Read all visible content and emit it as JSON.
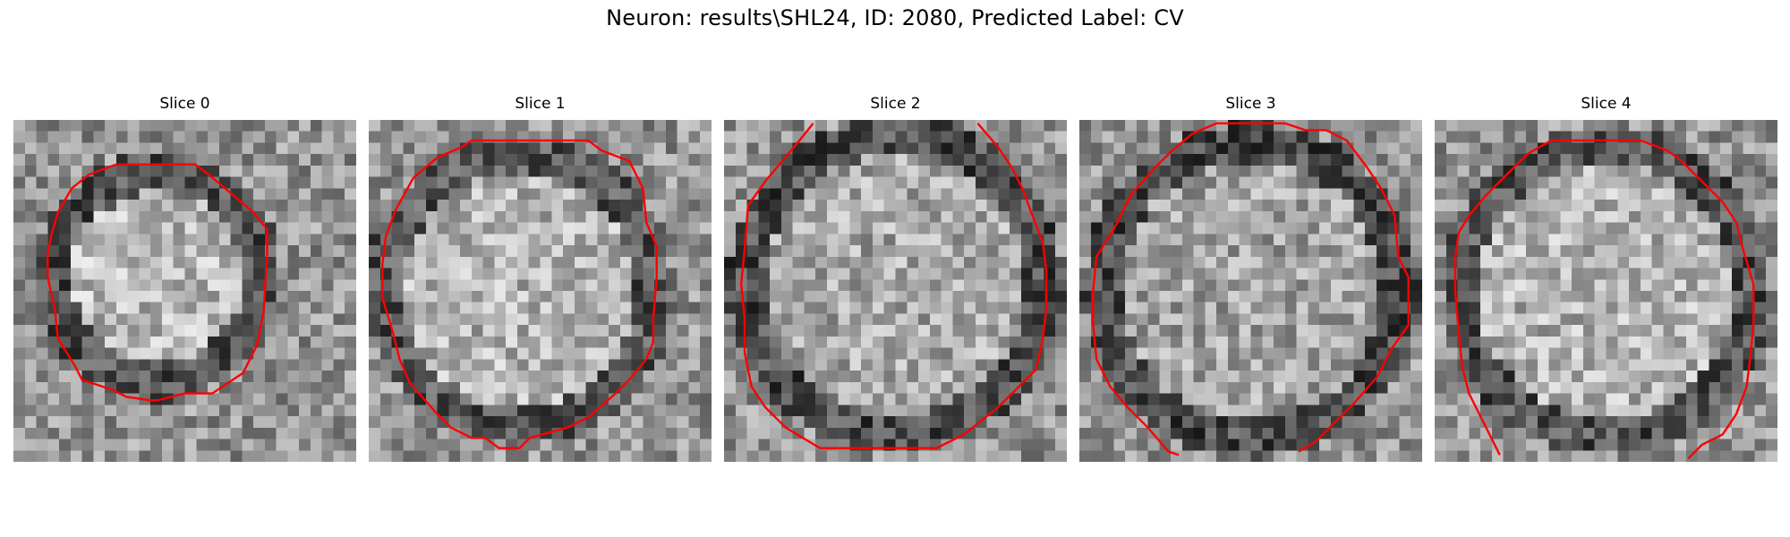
{
  "figure": {
    "suptitle": "Neuron: results\\SHL24, ID: 2080, Predicted Label: CV",
    "contour_color": "#ff0000"
  },
  "panels": [
    {
      "title": "Slice 0"
    },
    {
      "title": "Slice 1"
    },
    {
      "title": "Slice 2"
    },
    {
      "title": "Slice 3"
    },
    {
      "title": "Slice 4"
    }
  ]
}
